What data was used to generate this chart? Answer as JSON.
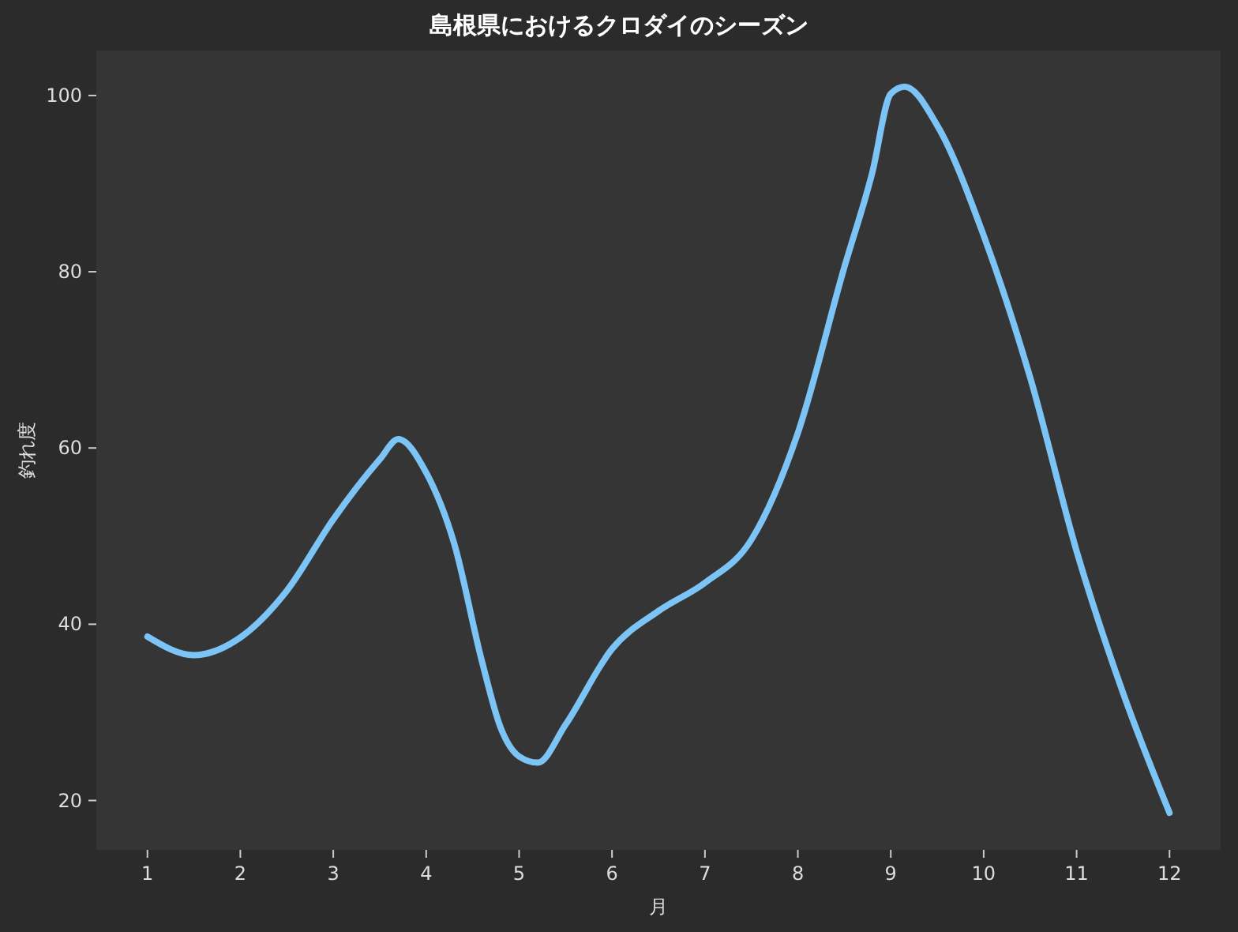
{
  "chart_data": {
    "type": "line",
    "title": "島根県におけるクロダイのシーズン",
    "xlabel": "月",
    "ylabel": "釣れ度",
    "x": [
      1,
      1.5,
      2,
      2.5,
      3,
      3.5,
      3.7,
      4,
      4.3,
      4.6,
      4.8,
      5,
      5.2,
      5.5,
      6,
      6.5,
      7,
      7.5,
      8,
      8.5,
      8.8,
      9,
      9.15,
      9.5,
      10,
      10.5,
      11,
      11.5,
      12
    ],
    "series": [
      {
        "color": "#7cc4f5",
        "values": [
          38.6,
          36.5,
          38.5,
          43.8,
          51.9,
          58.7,
          61,
          57.2,
          49.2,
          35.8,
          28.3,
          25,
          24.3,
          28.6,
          37.2,
          41.5,
          44.7,
          49.6,
          61.7,
          80.5,
          91.2,
          100.2,
          101,
          96.6,
          84.1,
          68,
          48.3,
          32.2,
          18.6
        ]
      }
    ],
    "xlim": [
      0.45,
      12.55
    ],
    "ylim": [
      14.4,
      105.1
    ],
    "xticks": [
      1,
      2,
      3,
      4,
      5,
      6,
      7,
      8,
      9,
      10,
      11,
      12
    ],
    "yticks": [
      20,
      40,
      60,
      80,
      100
    ],
    "grid": false,
    "marker": "none",
    "line_style": "solid"
  }
}
